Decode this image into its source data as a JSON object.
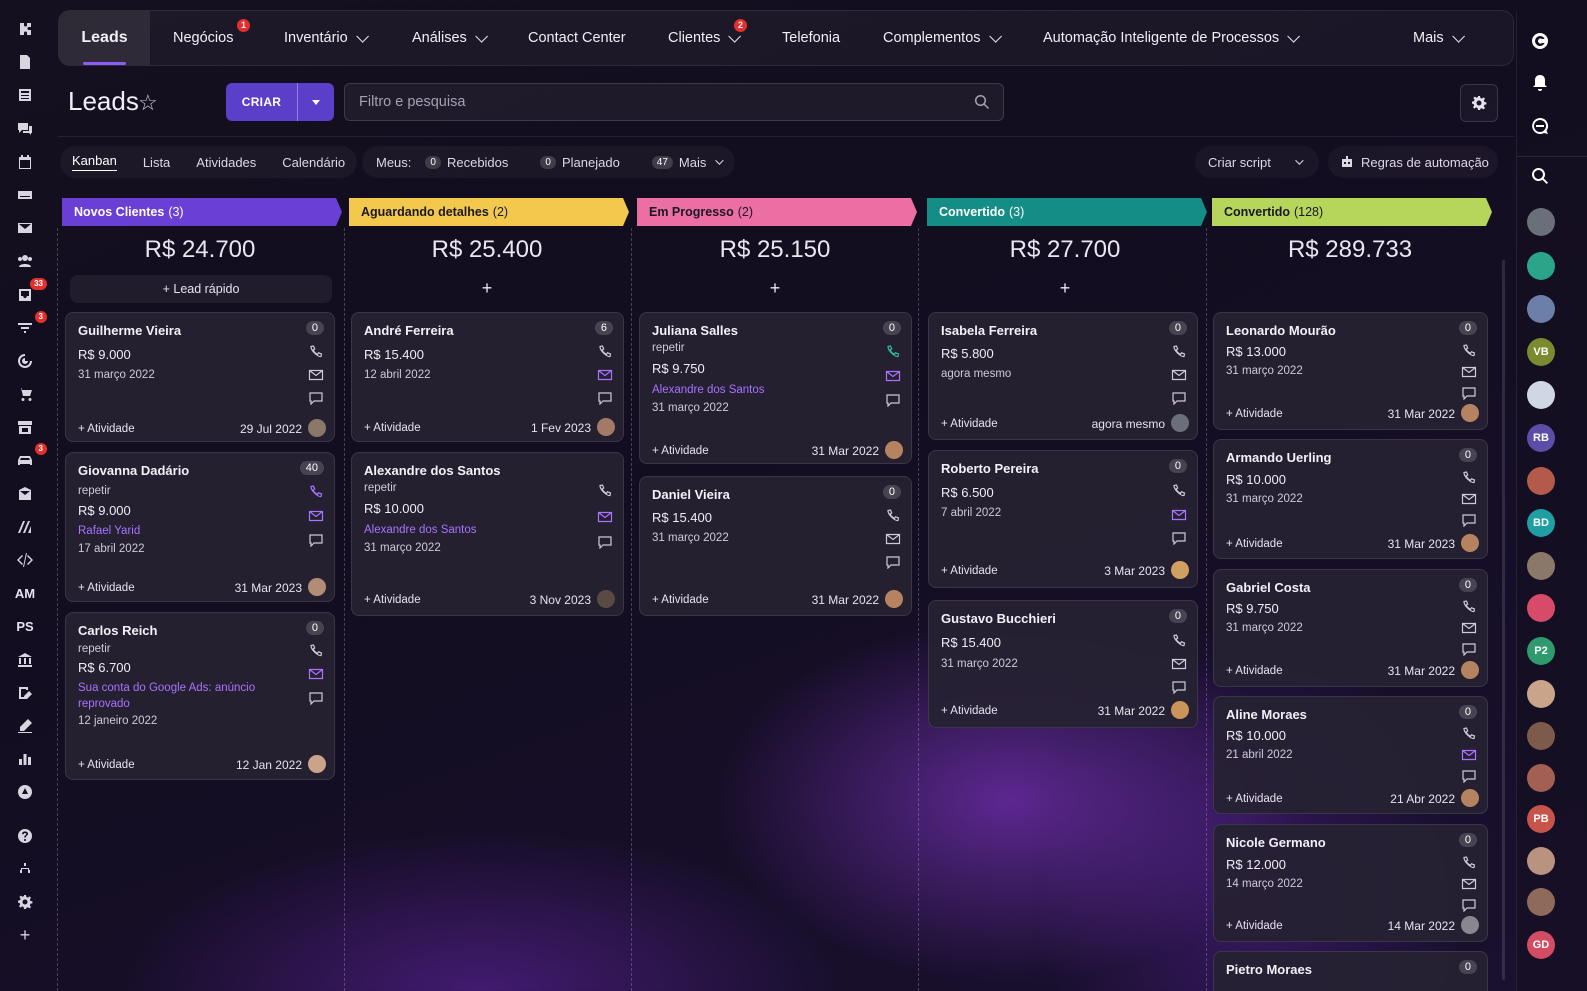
{
  "left_rail": {
    "badges": {
      "inbox": "33",
      "filter": "3",
      "car": "3"
    },
    "text_items": [
      "AM",
      "PS"
    ]
  },
  "nav": {
    "items": [
      {
        "label": "Leads",
        "active": true
      },
      {
        "label": "Negócios",
        "badge": "1"
      },
      {
        "label": "Inventário",
        "chevron": true
      },
      {
        "label": "Análises",
        "chevron": true
      },
      {
        "label": "Contact Center"
      },
      {
        "label": "Clientes",
        "badge": "2",
        "chevron": true
      },
      {
        "label": "Telefonia"
      },
      {
        "label": "Complementos",
        "chevron": true
      },
      {
        "label": "Automação Inteligente de Processos",
        "chevron": true
      },
      {
        "label": "Mais",
        "chevron": true
      }
    ]
  },
  "page": {
    "title": "Leads",
    "create_label": "CRIAR",
    "search_placeholder": "Filtro e pesquisa"
  },
  "views": {
    "items": [
      "Kanban",
      "Lista",
      "Atividades",
      "Calendário"
    ],
    "active": "Kanban"
  },
  "meus": {
    "label": "Meus:",
    "received_count": "0",
    "received_label": "Recebidos",
    "planned_count": "0",
    "planned_label": "Planejado",
    "more_count": "47",
    "more_label": "Mais"
  },
  "actions": {
    "script_label": "Criar script",
    "automation_label": "Regras de automação"
  },
  "quick_lead": "+ Lead rápido",
  "columns": [
    {
      "title": "Novos Clientes",
      "count": "(3)",
      "color": "#6a3fd6",
      "text": "#ffffff",
      "sum": "R$ 24.700"
    },
    {
      "title": "Aguardando detalhes",
      "count": "(2)",
      "color": "#f2c94c",
      "text": "#1b1625",
      "sum": "R$ 25.400"
    },
    {
      "title": "Em Progresso",
      "count": "(2)",
      "color": "#ec6fa3",
      "text": "#1b1625",
      "sum": "R$ 25.150"
    },
    {
      "title": "Convertido",
      "count": "(3)",
      "color": "#138d85",
      "text": "#ffffff",
      "sum": "R$ 27.700"
    },
    {
      "title": "Convertido",
      "count": "(128)",
      "color": "#b5d65a",
      "text": "#1b1625",
      "sum": "R$ 289.733"
    }
  ],
  "cards": [
    {
      "name": "Guilherme Vieira",
      "badge": "0",
      "amount": "R$ 9.000",
      "date": "31 março 2022",
      "activity": "+ Atividade",
      "fdate": "29 Jul 2022"
    },
    {
      "name": "Giovanna Dadário",
      "badge": "40",
      "repeat": "repetir",
      "amount": "R$ 9.000",
      "link": "Rafael Yarid",
      "date": "17 abril 2022",
      "activity": "+ Atividade",
      "fdate": "31 Mar 2023"
    },
    {
      "name": "Carlos Reich",
      "badge": "0",
      "repeat": "repetir",
      "amount": "R$ 6.700",
      "link": "Sua conta do Google Ads: anúncio reprovado",
      "date": "12 janeiro 2022",
      "activity": "+ Atividade",
      "fdate": "12 Jan 2022"
    },
    {
      "name": "André Ferreira",
      "badge": "6",
      "amount": "R$ 15.400",
      "date": "12 abril 2022",
      "activity": "+ Atividade",
      "fdate": "1 Fev 2023"
    },
    {
      "name": "Alexandre dos Santos",
      "badge": "",
      "repeat": "repetir",
      "amount": "R$ 10.000",
      "link": "Alexandre dos Santos",
      "date": "31 março 2022",
      "activity": "+ Atividade",
      "fdate": "3 Nov 2023"
    },
    {
      "name": "Juliana Salles",
      "badge": "0",
      "repeat": "repetir",
      "amount": "R$ 9.750",
      "link": "Alexandre dos Santos",
      "date": "31 março 2022",
      "activity": "+ Atividade",
      "fdate": "31 Mar 2022"
    },
    {
      "name": "Daniel Vieira",
      "badge": "0",
      "amount": "R$ 15.400",
      "date": "31 março 2022",
      "activity": "+ Atividade",
      "fdate": "31 Mar 2022"
    },
    {
      "name": "Isabela Ferreira",
      "badge": "0",
      "amount": "R$ 5.800",
      "date": "agora mesmo",
      "activity": "+ Atividade",
      "fdate": "agora mesmo"
    },
    {
      "name": "Roberto Pereira",
      "badge": "0",
      "amount": "R$ 6.500",
      "date": "7 abril 2022",
      "activity": "+ Atividade",
      "fdate": "3 Mar 2023"
    },
    {
      "name": "Gustavo Bucchieri",
      "badge": "0",
      "amount": "R$ 15.400",
      "date": "31 março 2022",
      "activity": "+ Atividade",
      "fdate": "31 Mar 2022"
    },
    {
      "name": "Leonardo Mourão",
      "badge": "0",
      "amount": "R$ 13.000",
      "date": "31 março 2022",
      "activity": "+ Atividade",
      "fdate": "31 Mar 2022"
    },
    {
      "name": "Armando Uerling",
      "badge": "0",
      "amount": "R$ 10.000",
      "date": "31 março 2022",
      "activity": "+ Atividade",
      "fdate": "31 Mar 2023"
    },
    {
      "name": "Gabriel Costa",
      "badge": "0",
      "amount": "R$ 9.750",
      "date": "31 março 2022",
      "activity": "+ Atividade",
      "fdate": "31 Mar 2022"
    },
    {
      "name": "Aline Moraes",
      "badge": "0",
      "amount": "R$ 10.000",
      "date": "21 abril 2022",
      "activity": "+ Atividade",
      "fdate": "21 Abr 2022"
    },
    {
      "name": "Nicole Germano",
      "badge": "0",
      "amount": "R$ 12.000",
      "date": "14 março 2022",
      "activity": "+ Atividade",
      "fdate": "14 Mar 2022"
    },
    {
      "name": "Pietro Moraes",
      "badge": "0"
    }
  ],
  "right_rail": {
    "avatars": [
      "VB",
      "RB",
      "BD",
      "P2",
      "PB",
      "GD"
    ]
  }
}
